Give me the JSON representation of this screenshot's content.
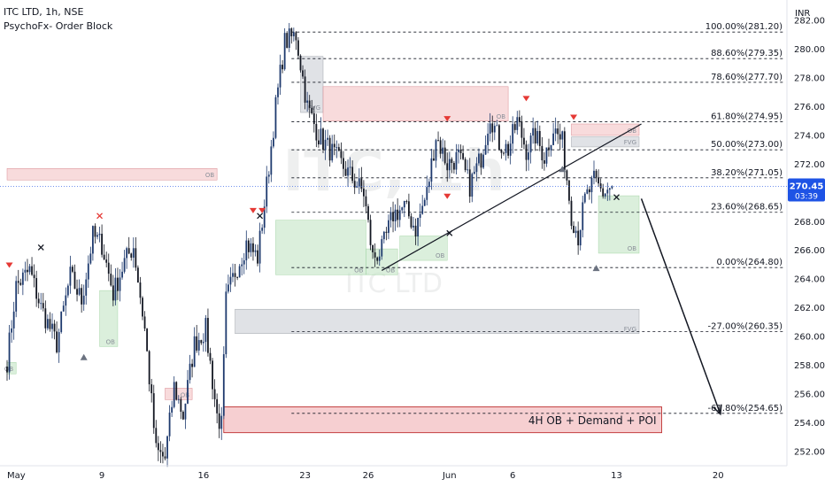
{
  "symbol_line": "ITC LTD, 1h, NSE",
  "indicator_line": "PsychoFx- Order Block",
  "watermark": {
    "symbol": "ITC, 1h",
    "name": "ITC LTD"
  },
  "currency": "INR",
  "colors": {
    "up": "#1e3a6e",
    "down": "#131722",
    "fib_line": "#131722",
    "ob_green": "#c8e6c9",
    "ob_red": "#f4c7c9",
    "ob_gray": "#cfd2d8",
    "price_tag": "#1e53e5",
    "signal_red": "#e53935",
    "signal_gray": "#6b7280"
  },
  "chart_data": {
    "type": "candlestick",
    "title": "ITC LTD, 1h, NSE",
    "ylabel": "INR",
    "ylim": [
      251,
      283
    ],
    "y_ticks": [
      252,
      254,
      256,
      258,
      260,
      262,
      264,
      266,
      268,
      270,
      272,
      274,
      276,
      278,
      280,
      282
    ],
    "x_ticks": [
      {
        "label": "May",
        "bar": 0
      },
      {
        "label": "9",
        "bar": 42
      },
      {
        "label": "16",
        "bar": 87
      },
      {
        "label": "23",
        "bar": 132
      },
      {
        "label": "26",
        "bar": 160
      },
      {
        "label": "Jun",
        "bar": 196
      },
      {
        "label": "6",
        "bar": 224
      },
      {
        "label": "13",
        "bar": 270
      },
      {
        "label": "20",
        "bar": 315
      }
    ],
    "grid": false,
    "last_price": {
      "value": 270.45,
      "label": "270.45",
      "countdown": "03:39"
    },
    "anchors": [
      {
        "bar": 0,
        "price": 258.3
      },
      {
        "bar": 4,
        "price": 263.5
      },
      {
        "bar": 10,
        "price": 264.6
      },
      {
        "bar": 15,
        "price": 262.0
      },
      {
        "bar": 22,
        "price": 259.5
      },
      {
        "bar": 28,
        "price": 264.2
      },
      {
        "bar": 33,
        "price": 262.5
      },
      {
        "bar": 38,
        "price": 267.0
      },
      {
        "bar": 42,
        "price": 266.4
      },
      {
        "bar": 47,
        "price": 263.0
      },
      {
        "bar": 52,
        "price": 265.2
      },
      {
        "bar": 56,
        "price": 266.3
      },
      {
        "bar": 61,
        "price": 260.5
      },
      {
        "bar": 66,
        "price": 252.0
      },
      {
        "bar": 70,
        "price": 251.5
      },
      {
        "bar": 74,
        "price": 256.5
      },
      {
        "bar": 78,
        "price": 254.5
      },
      {
        "bar": 83,
        "price": 259.5
      },
      {
        "bar": 88,
        "price": 260.5
      },
      {
        "bar": 93,
        "price": 254.5
      },
      {
        "bar": 95,
        "price": 253.8
      },
      {
        "bar": 97,
        "price": 262.5
      },
      {
        "bar": 101,
        "price": 264.5
      },
      {
        "bar": 106,
        "price": 266.5
      },
      {
        "bar": 111,
        "price": 265.5
      },
      {
        "bar": 115,
        "price": 270.5
      },
      {
        "bar": 119,
        "price": 276.0
      },
      {
        "bar": 123,
        "price": 280.5
      },
      {
        "bar": 128,
        "price": 281.0
      },
      {
        "bar": 133,
        "price": 276.0
      },
      {
        "bar": 138,
        "price": 274.0
      },
      {
        "bar": 143,
        "price": 273.0
      },
      {
        "bar": 148,
        "price": 272.0
      },
      {
        "bar": 153,
        "price": 271.0
      },
      {
        "bar": 158,
        "price": 270.0
      },
      {
        "bar": 162,
        "price": 265.5
      },
      {
        "bar": 166,
        "price": 266.0
      },
      {
        "bar": 171,
        "price": 268.5
      },
      {
        "bar": 176,
        "price": 269.0
      },
      {
        "bar": 181,
        "price": 267.5
      },
      {
        "bar": 186,
        "price": 270.0
      },
      {
        "bar": 190,
        "price": 274.0
      },
      {
        "bar": 195,
        "price": 272.0
      },
      {
        "bar": 200,
        "price": 272.5
      },
      {
        "bar": 205,
        "price": 270.5
      },
      {
        "bar": 210,
        "price": 272.5
      },
      {
        "bar": 214,
        "price": 275.5
      },
      {
        "bar": 218,
        "price": 273.5
      },
      {
        "bar": 222,
        "price": 273.0
      },
      {
        "bar": 226,
        "price": 275.0
      },
      {
        "bar": 230,
        "price": 273.0
      },
      {
        "bar": 234,
        "price": 274.0
      },
      {
        "bar": 238,
        "price": 272.5
      },
      {
        "bar": 242,
        "price": 274.5
      },
      {
        "bar": 246,
        "price": 273.5
      },
      {
        "bar": 250,
        "price": 268.5
      },
      {
        "bar": 253,
        "price": 267.0
      },
      {
        "bar": 256,
        "price": 269.5
      },
      {
        "bar": 260,
        "price": 270.8
      },
      {
        "bar": 264,
        "price": 270.0
      },
      {
        "bar": 268,
        "price": 270.45
      }
    ],
    "fib_levels": [
      {
        "label": "100.00%(281.20)",
        "value": 281.2
      },
      {
        "label": "88.60%(279.35)",
        "value": 279.35
      },
      {
        "label": "78.60%(277.70)",
        "value": 277.7
      },
      {
        "label": "61.80%(274.95)",
        "value": 274.95
      },
      {
        "label": "50.00%(273.00)",
        "value": 273.0
      },
      {
        "label": "38.20%(271.05)",
        "value": 271.05
      },
      {
        "label": "23.60%(268.65)",
        "value": 268.65
      },
      {
        "label": "0.00%(264.80)",
        "value": 264.8
      },
      {
        "label": "-27.00%(260.35)",
        "value": 260.35
      },
      {
        "label": "-61.80%(254.65)",
        "value": 254.65
      }
    ],
    "zones": [
      {
        "kind": "red",
        "x0": 0,
        "x1": 93,
        "y0": 270.9,
        "y1": 271.7,
        "label": "OB"
      },
      {
        "kind": "green",
        "x0": 0,
        "x1": 4,
        "y0": 257.4,
        "y1": 258.2,
        "label": "OB"
      },
      {
        "kind": "green",
        "x0": 41,
        "x1": 49,
        "y0": 259.3,
        "y1": 263.2,
        "label": "OB"
      },
      {
        "kind": "green",
        "x0": 119,
        "x1": 159,
        "y0": 264.3,
        "y1": 268.1,
        "label": "OB"
      },
      {
        "kind": "gray",
        "x0": 130,
        "x1": 140,
        "y0": 275.6,
        "y1": 279.5,
        "label": "FVG"
      },
      {
        "kind": "red",
        "x0": 140,
        "x1": 222,
        "y0": 275.0,
        "y1": 277.4,
        "label": "OB"
      },
      {
        "kind": "green",
        "x0": 159,
        "x1": 173,
        "y0": 264.3,
        "y1": 266.1,
        "label": "OB"
      },
      {
        "kind": "green",
        "x0": 174,
        "x1": 195,
        "y0": 265.3,
        "y1": 267.0,
        "label": "OB"
      },
      {
        "kind": "red",
        "x0": 250,
        "x1": 280,
        "y0": 274.0,
        "y1": 274.8,
        "label": "OB"
      },
      {
        "kind": "gray",
        "x0": 250,
        "x1": 280,
        "y0": 273.2,
        "y1": 273.9,
        "label": "FVG"
      },
      {
        "kind": "green",
        "x0": 262,
        "x1": 280,
        "y0": 265.8,
        "y1": 269.8,
        "label": "OB"
      },
      {
        "kind": "gray",
        "x0": 101,
        "x1": 280,
        "y0": 260.2,
        "y1": 261.9,
        "label": "FVG"
      },
      {
        "kind": "red",
        "x0": 70,
        "x1": 82,
        "y0": 255.6,
        "y1": 256.4,
        "label": "OB"
      },
      {
        "kind": "red",
        "x0": 96,
        "x1": 290,
        "y0": 253.3,
        "y1": 255.1,
        "label": "4H OB + Demand + POI"
      }
    ],
    "signals": [
      {
        "type": "sell",
        "bar": 1,
        "price": 264.9
      },
      {
        "type": "x",
        "bar": 15,
        "price": 266.2
      },
      {
        "type": "buy",
        "bar": 34,
        "price": 258.6
      },
      {
        "type": "x",
        "bar": 41,
        "price": 268.4
      },
      {
        "type": "sell",
        "bar": 109,
        "price": 268.7
      },
      {
        "type": "sell",
        "bar": 113,
        "price": 268.7
      },
      {
        "type": "x",
        "bar": 112,
        "price": 268.4
      },
      {
        "type": "sell",
        "bar": 195,
        "price": 275.1
      },
      {
        "type": "sell",
        "bar": 230,
        "price": 276.5
      },
      {
        "type": "sell",
        "bar": 195,
        "price": 269.7
      },
      {
        "type": "sell",
        "bar": 251,
        "price": 275.2
      },
      {
        "type": "x",
        "bar": 196,
        "price": 267.2
      },
      {
        "type": "buy",
        "bar": 246,
        "price": 271.7
      },
      {
        "type": "buy",
        "bar": 261,
        "price": 264.8
      },
      {
        "type": "x",
        "bar": 270,
        "price": 269.7
      }
    ],
    "trendline": {
      "x0": 166,
      "y0": 264.6,
      "x1": 281,
      "y1": 274.8
    },
    "projection": {
      "x0": 281,
      "y0": 269.6,
      "x1": 316,
      "y1": 254.6
    }
  }
}
